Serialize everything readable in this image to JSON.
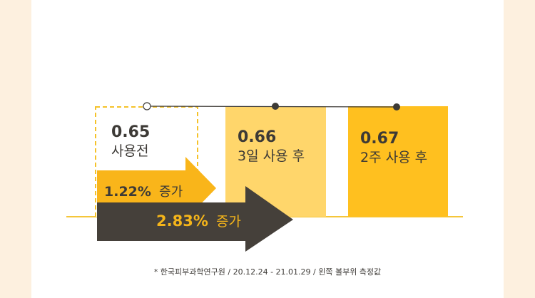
{
  "chart_data": {
    "type": "bar",
    "categories": [
      "사용전",
      "3일 사용 후",
      "2주 사용 후"
    ],
    "values": [
      0.65,
      0.66,
      0.67
    ],
    "value_labels": [
      "0.65",
      "0.66",
      "0.67"
    ],
    "increases": [
      {
        "value": "1.22%",
        "suffix": "증가"
      },
      {
        "value": "2.83%",
        "suffix": "증가"
      }
    ]
  },
  "colors": {
    "background": "#fdf0df",
    "panel": "#ffffff",
    "bar_before_border": "#f5c22a",
    "bar_3day": "#ffd66b",
    "bar_2week": "#ffc01f",
    "arrow_small": "#f9b51a",
    "arrow_big": "#45403a",
    "text_dark": "#3d3a36",
    "baseline": "#f5c63a"
  },
  "footnote": "* 한국피부과학연구원 / 20.12.24 - 21.01.29 / 왼쪽 볼부위 측정값"
}
